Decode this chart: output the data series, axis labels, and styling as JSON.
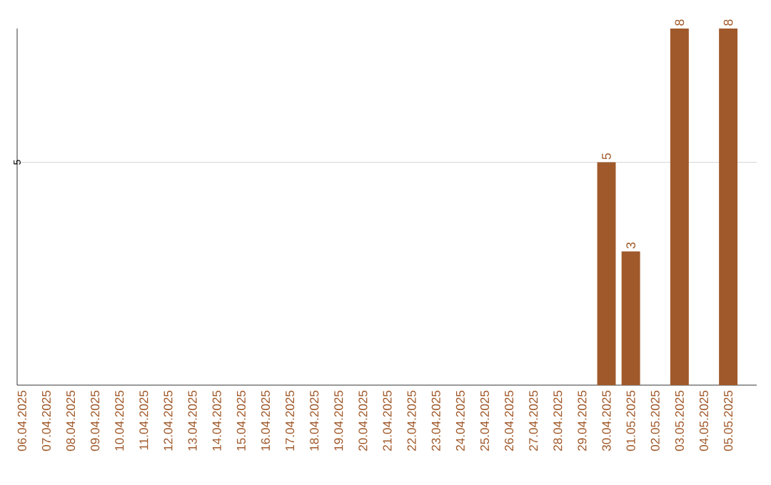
{
  "chart_data": {
    "type": "bar",
    "categories": [
      "06.04.2025",
      "07.04.2025",
      "08.04.2025",
      "09.04.2025",
      "10.04.2025",
      "11.04.2025",
      "12.04.2025",
      "13.04.2025",
      "14.04.2025",
      "15.04.2025",
      "16.04.2025",
      "17.04.2025",
      "18.04.2025",
      "19.04.2025",
      "20.04.2025",
      "21.04.2025",
      "22.04.2025",
      "23.04.2025",
      "24.04.2025",
      "25.04.2025",
      "26.04.2025",
      "27.04.2025",
      "28.04.2025",
      "29.04.2025",
      "30.04.2025",
      "01.05.2025",
      "02.05.2025",
      "03.05.2025",
      "04.05.2025",
      "05.05.2025"
    ],
    "values": [
      null,
      null,
      null,
      null,
      null,
      null,
      null,
      null,
      null,
      null,
      null,
      null,
      null,
      null,
      null,
      null,
      null,
      null,
      null,
      null,
      null,
      null,
      null,
      null,
      5,
      3,
      null,
      8,
      null,
      8
    ],
    "value_labels": [
      null,
      null,
      null,
      null,
      null,
      null,
      null,
      null,
      null,
      null,
      null,
      null,
      null,
      null,
      null,
      null,
      null,
      null,
      null,
      null,
      null,
      null,
      null,
      null,
      "5",
      "3",
      null,
      "8",
      null,
      "8"
    ],
    "color": "#a0592a",
    "ylim": [
      0,
      8
    ],
    "yticks": [
      5
    ],
    "grid": "y"
  }
}
